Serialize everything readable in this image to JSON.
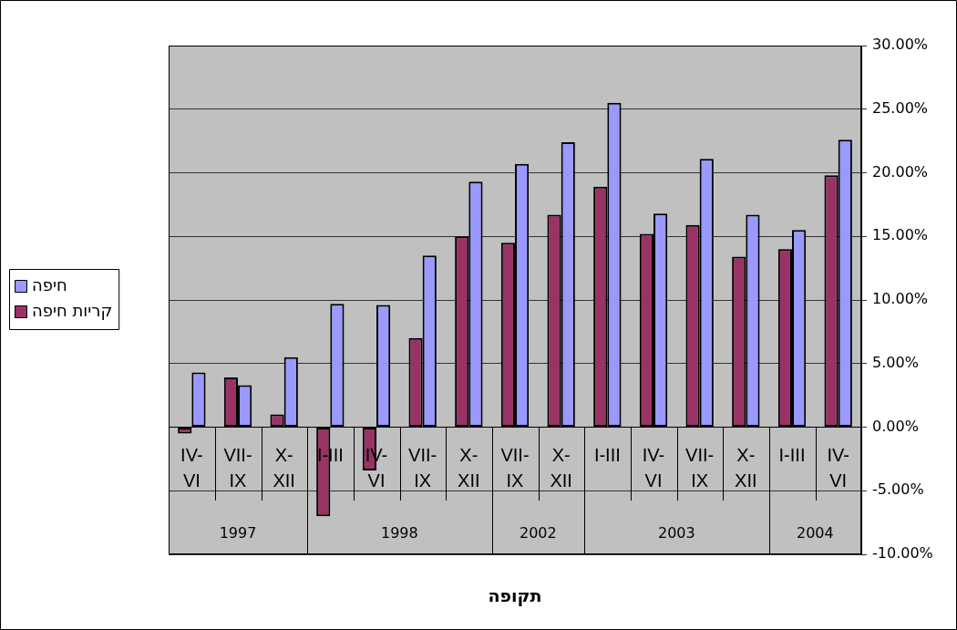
{
  "chart_data": {
    "type": "bar",
    "xlabel": "תקופה",
    "categories": [
      "IV-VI",
      "VII-IX",
      "X-XII",
      "I-III",
      "IV-VI",
      "VII-IX",
      "X-XII",
      "VII-IX",
      "X-XII",
      "I-III",
      "IV-VI",
      "VII-IX",
      "X-XII",
      "I-III",
      "IV-VI"
    ],
    "series": [
      {
        "name": "קריות חיפה",
        "color": "#993366",
        "values": [
          -0.5,
          3.9,
          1.0,
          -7.0,
          -3.4,
          7.0,
          15.0,
          14.5,
          16.7,
          18.9,
          15.2,
          15.9,
          13.4,
          14.0,
          19.8
        ]
      },
      {
        "name": "חיפה",
        "color": "#9999ff",
        "values": [
          4.3,
          3.3,
          5.5,
          9.7,
          9.6,
          13.5,
          19.3,
          20.7,
          22.4,
          25.5,
          16.8,
          21.1,
          16.7,
          15.5,
          22.6
        ]
      }
    ],
    "annotations": [
      "1997",
      "1998",
      "2002",
      "2003",
      "2004"
    ],
    "ylim": [
      -10,
      30
    ],
    "yticks": [
      {
        "value": -10,
        "label": "-10.00%"
      },
      {
        "value": -5,
        "label": "-5.00%"
      },
      {
        "value": 0,
        "label": "0.00%"
      },
      {
        "value": 5,
        "label": "5.00%"
      },
      {
        "value": 10,
        "label": "10.00%"
      },
      {
        "value": 15,
        "label": "15.00%"
      },
      {
        "value": 20,
        "label": "20.00%"
      },
      {
        "value": 25,
        "label": "25.00%"
      },
      {
        "value": 30,
        "label": "30.00%"
      }
    ],
    "grid": "y",
    "legend": "left"
  }
}
